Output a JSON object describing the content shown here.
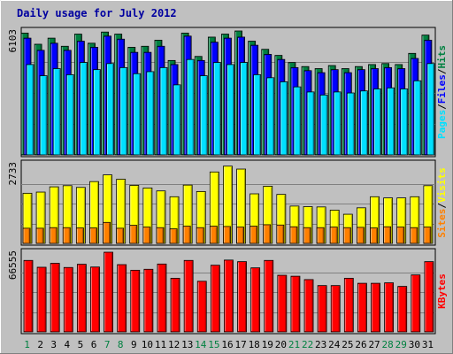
{
  "chart_data": {
    "type": "bar",
    "title": "Daily usage for July 2012",
    "days": [
      "1",
      "2",
      "3",
      "4",
      "5",
      "6",
      "7",
      "8",
      "9",
      "10",
      "11",
      "12",
      "13",
      "14",
      "15",
      "16",
      "17",
      "18",
      "19",
      "20",
      "21",
      "22",
      "23",
      "24",
      "25",
      "26",
      "27",
      "28",
      "29",
      "30",
      "31"
    ],
    "weekend_days": [
      "1",
      "7",
      "8",
      "14",
      "15",
      "21",
      "22",
      "28",
      "29"
    ],
    "colors": {
      "hits": "#008040",
      "files": "#0000ff",
      "pages": "#00e0ff",
      "visits": "#ffff00",
      "sites": "#ff8000",
      "kbytes": "#ff0000",
      "title": "#0000a0",
      "weekend_day": "#008040",
      "weekday": "#000000",
      "background": "#c0c0c0"
    },
    "panels": [
      {
        "name": "hits-files-pages",
        "ymax": 6103,
        "ytick_label": "6103",
        "legend": [
          "Pages",
          "/",
          "Files",
          "/",
          "Hits"
        ],
        "legend_colors": [
          "#00e0ff",
          "#000000",
          "#0000ff",
          "#000000",
          "#008040"
        ],
        "series": [
          {
            "name": "Hits",
            "color": "#008040",
            "values": [
              6000,
              5450,
              5750,
              5350,
              5950,
              5500,
              6050,
              5950,
              5300,
              5350,
              5650,
              4650,
              6000,
              4850,
              5800,
              5950,
              6103,
              5600,
              5200,
              4900,
              4550,
              4350,
              4250,
              4400,
              4250,
              4350,
              4450,
              4500,
              4450,
              5000,
              5900
            ]
          },
          {
            "name": "Files",
            "color": "#0000ff",
            "values": [
              5750,
              5150,
              5500,
              5150,
              5600,
              5300,
              5850,
              5700,
              5050,
              5050,
              5350,
              4450,
              5850,
              4650,
              5550,
              5750,
              5800,
              5400,
              4950,
              4700,
              4300,
              4150,
              4050,
              4200,
              4050,
              4200,
              4250,
              4300,
              4250,
              4750,
              5650
            ]
          },
          {
            "name": "Pages",
            "color": "#00e0ff",
            "values": [
              4450,
              3900,
              4250,
              3950,
              4550,
              4200,
              4500,
              4300,
              4000,
              4100,
              4300,
              3450,
              4700,
              3900,
              4550,
              4450,
              4550,
              3950,
              3800,
              3600,
              3350,
              3100,
              2950,
              3100,
              3050,
              3150,
              3250,
              3300,
              3250,
              3650,
              4500
            ]
          }
        ]
      },
      {
        "name": "visits-sites",
        "ymax": 2733,
        "ytick_label": "2733",
        "legend": [
          "Sites",
          "/",
          "Visits"
        ],
        "legend_colors": [
          "#ff8000",
          "#000000",
          "#ffff00"
        ],
        "series": [
          {
            "name": "Visits",
            "color": "#ffff00",
            "values": [
              1720,
              1760,
              1940,
              1980,
              1920,
              2120,
              2350,
              2200,
              1990,
              1900,
              1800,
              1600,
              2000,
              1780,
              2450,
              2650,
              2550,
              1700,
              1960,
              1680,
              1280,
              1260,
              1250,
              1140,
              1000,
              1220,
              1600,
              1560,
              1560,
              1600,
              1980
            ]
          },
          {
            "name": "Sites",
            "color": "#ff8000",
            "values": [
              520,
              520,
              540,
              540,
              530,
              530,
              720,
              520,
              620,
              560,
              540,
              500,
              590,
              540,
              590,
              580,
              560,
              590,
              640,
              630,
              570,
              540,
              540,
              560,
              540,
              550,
              530,
              570,
              560,
              540,
              560
            ]
          }
        ]
      },
      {
        "name": "kbytes",
        "ymax": 66555,
        "ytick_label": "66555",
        "legend": [
          "KBytes"
        ],
        "legend_colors": [
          "#ff0000"
        ],
        "series": [
          {
            "name": "KBytes",
            "color": "#ff0000",
            "values": [
              59700,
              54000,
              57300,
              53800,
              56500,
              54200,
              66555,
              56200,
              51500,
              52300,
              56700,
              44800,
              59700,
              42300,
              55700,
              60000,
              58700,
              53500,
              59700,
              47300,
              46500,
              43700,
              38700,
              38700,
              44800,
              40600,
              40600,
              41000,
              38000,
              47600,
              58700
            ]
          }
        ]
      }
    ]
  }
}
